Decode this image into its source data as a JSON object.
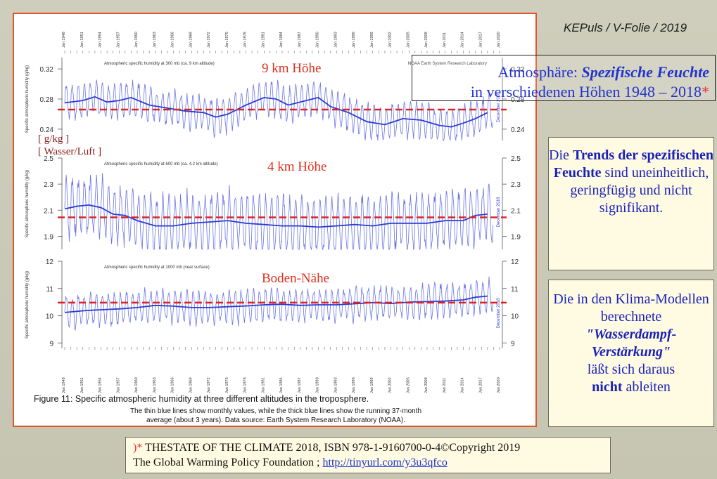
{
  "header": {
    "tag": "KEPuls / V-Folie / 2019"
  },
  "title": {
    "part1": "Atmosphäre: ",
    "emph": "Spezifische Feuchte",
    "part2": "in verschiedenen Höhen 1948 – 2018",
    "asterisk": "*"
  },
  "box1": {
    "t1": "Die ",
    "t2": "Trends der spezifischen Feuchte",
    "t3": " sind uneinheitlich, geringfügig und nicht signifikant."
  },
  "box2": {
    "t1": "Die in den Klima-Modellen berechnete",
    "t2": "\"Wasserdampf-Verstärkung\"",
    "t3": "läßt sich daraus",
    "t4": "nicht",
    "t5": " ableiten"
  },
  "footer": {
    "asterisk": ")*",
    "line1": " THESTATE OF THE CLIMATE 2018, ISBN 978-1-9160700-0-4©Copyright 2019",
    "line2": "The Global Warming Policy Foundation ; ",
    "link": "http://tinyurl.com/y3u3qfco"
  },
  "colors": {
    "thin": "#6a74e6",
    "thick": "#2b3bd0",
    "trend": "#dd2222",
    "overlay_text": "#e0301e"
  },
  "chart_data": {
    "type": "line",
    "x_ticks": [
      "Jan 1948",
      "Jan 1951",
      "Jan 1954",
      "Jan 1957",
      "Jan 1960",
      "Jan 1963",
      "Jan 1966",
      "Jan 1969",
      "Jan 1972",
      "Jan 1975",
      "Jan 1978",
      "Jan 1981",
      "Jan 1984",
      "Jan 1987",
      "Jan 1990",
      "Jan 1993",
      "Jan 1996",
      "Jan 1999",
      "Jan 2002",
      "Jan 2005",
      "Jan 2008",
      "Jan 2011",
      "Jan 2014",
      "Jan 2017",
      "Jan 2020"
    ],
    "x_range": [
      1948,
      2020
    ],
    "source_label": "NOAA Earth System Research Laboratory",
    "caption": {
      "main": "Figure 11: Specific atmospheric humidity at three different altitudes in the troposphere.",
      "sub1": "The thin blue lines show monthly values, while the thick blue lines show the running 37-month",
      "sub2": "average (about 3 years). Data source: Earth System Research Laboratory (NOAA)."
    },
    "panels": [
      {
        "name": "Atmospheric specific humidity at 300 mb (ca. 9 km altitude)",
        "overlay": "9 km Höhe",
        "ylabel": "Specific atmospheric humidity (g/kg)",
        "ylim": [
          0.225,
          0.335
        ],
        "ticks": [
          "0.24",
          "0.28",
          "0.32"
        ],
        "tick_values": [
          0.24,
          0.28,
          0.32
        ],
        "trend": 0.266,
        "month_note": "December 2018",
        "running_mean": [
          [
            1948,
            0.275
          ],
          [
            1951,
            0.278
          ],
          [
            1953,
            0.283
          ],
          [
            1955,
            0.276
          ],
          [
            1957,
            0.278
          ],
          [
            1959,
            0.282
          ],
          [
            1962,
            0.272
          ],
          [
            1965,
            0.268
          ],
          [
            1968,
            0.264
          ],
          [
            1971,
            0.262
          ],
          [
            1973,
            0.256
          ],
          [
            1975,
            0.26
          ],
          [
            1978,
            0.272
          ],
          [
            1981,
            0.282
          ],
          [
            1983,
            0.28
          ],
          [
            1985,
            0.272
          ],
          [
            1988,
            0.278
          ],
          [
            1990,
            0.282
          ],
          [
            1992,
            0.27
          ],
          [
            1995,
            0.262
          ],
          [
            1998,
            0.25
          ],
          [
            2001,
            0.246
          ],
          [
            2004,
            0.254
          ],
          [
            2007,
            0.252
          ],
          [
            2010,
            0.245
          ],
          [
            2012,
            0.243
          ],
          [
            2014,
            0.248
          ],
          [
            2016,
            0.254
          ],
          [
            2018,
            0.262
          ]
        ],
        "amplitude": 0.022
      },
      {
        "name": "Atmospheric specific humidity at 600 mb (ca. 4,2 km altitude)",
        "overlay": "4 km Höhe",
        "ylabel": "Specific atmospheric humidity (g/kg)",
        "ylim": [
          1.8,
          2.5
        ],
        "ticks": [
          "1.9",
          "2.1",
          "2.3",
          "2.5"
        ],
        "tick_values": [
          1.9,
          2.1,
          2.3,
          2.5
        ],
        "trend": 2.045,
        "month_note": "December 2018",
        "running_mean": [
          [
            1948,
            2.11
          ],
          [
            1950,
            2.13
          ],
          [
            1952,
            2.14
          ],
          [
            1954,
            2.12
          ],
          [
            1956,
            2.07
          ],
          [
            1958,
            2.06
          ],
          [
            1960,
            2.02
          ],
          [
            1963,
            1.98
          ],
          [
            1966,
            1.98
          ],
          [
            1969,
            2.0
          ],
          [
            1972,
            2.01
          ],
          [
            1975,
            2.02
          ],
          [
            1978,
            2.0
          ],
          [
            1981,
            1.99
          ],
          [
            1984,
            1.98
          ],
          [
            1987,
            1.98
          ],
          [
            1990,
            1.97
          ],
          [
            1993,
            1.98
          ],
          [
            1996,
            1.99
          ],
          [
            1999,
            1.98
          ],
          [
            2002,
            2.0
          ],
          [
            2005,
            2.0
          ],
          [
            2008,
            2.0
          ],
          [
            2011,
            2.02
          ],
          [
            2014,
            2.02
          ],
          [
            2016,
            2.06
          ],
          [
            2018,
            2.07
          ]
        ],
        "amplitude": 0.22
      },
      {
        "name": "Atmospheric specific humidity at 1000 mb (near surface)",
        "overlay": "Boden-Nähe",
        "ylabel": "Specific atmospheric humidity (g/kg)",
        "ylim": [
          8.8,
          12.0
        ],
        "ticks": [
          "9",
          "10",
          "11",
          "12"
        ],
        "tick_values": [
          9,
          10,
          11,
          12
        ],
        "trend": 10.48,
        "month_note": "December 2018",
        "running_mean": [
          [
            1948,
            10.12
          ],
          [
            1951,
            10.18
          ],
          [
            1954,
            10.22
          ],
          [
            1957,
            10.25
          ],
          [
            1960,
            10.3
          ],
          [
            1963,
            10.38
          ],
          [
            1966,
            10.35
          ],
          [
            1969,
            10.3
          ],
          [
            1972,
            10.3
          ],
          [
            1975,
            10.33
          ],
          [
            1978,
            10.36
          ],
          [
            1981,
            10.4
          ],
          [
            1984,
            10.42
          ],
          [
            1987,
            10.38
          ],
          [
            1990,
            10.4
          ],
          [
            1993,
            10.4
          ],
          [
            1996,
            10.44
          ],
          [
            1999,
            10.48
          ],
          [
            2002,
            10.45
          ],
          [
            2005,
            10.5
          ],
          [
            2008,
            10.52
          ],
          [
            2011,
            10.54
          ],
          [
            2014,
            10.58
          ],
          [
            2016,
            10.68
          ],
          [
            2018,
            10.72
          ]
        ],
        "amplitude": 0.58
      }
    ],
    "unit_label_1": "[ g/kg ]",
    "unit_label_2": "[ Wasser/Luft ]"
  }
}
